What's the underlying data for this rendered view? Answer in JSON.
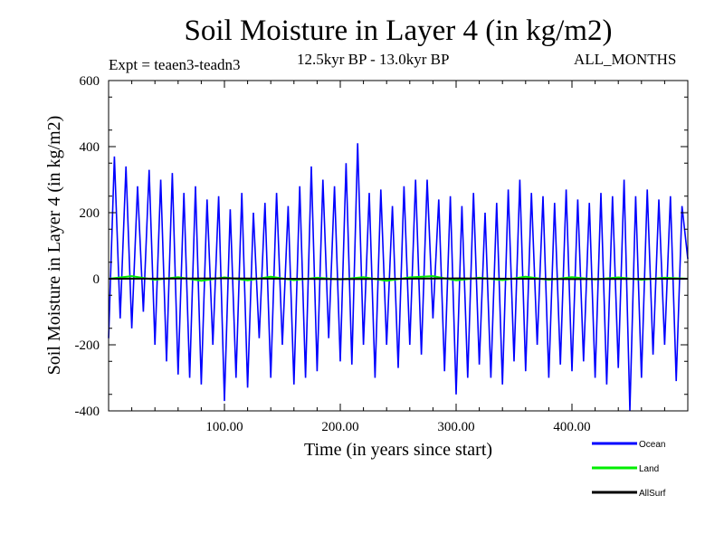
{
  "header": {
    "title": "Soil Moisture in Layer 4 (in kg/m2)",
    "expt": "Expt = teaen3-teadn3",
    "subtitle": "12.5kyr BP - 13.0kyr BP",
    "months": "ALL_MONTHS"
  },
  "chart_data": {
    "type": "line",
    "title": "Soil Moisture in Layer 4 (in kg/m2)",
    "xlabel": "Time (in years since start)",
    "ylabel": "Soil Moisture in Layer 4 (in kg/m2)",
    "xlim": [
      0,
      500
    ],
    "ylim": [
      -400,
      600
    ],
    "xticks": [
      100,
      200,
      300,
      400
    ],
    "xtick_labels": [
      "100.00",
      "200.00",
      "300.00",
      "400.00"
    ],
    "yticks": [
      -400,
      -200,
      0,
      200,
      400,
      600
    ],
    "ytick_labels": [
      "-400",
      "-200",
      "0",
      "200",
      "400",
      "600"
    ],
    "legend_position": "bottom-right, below plot",
    "series": [
      {
        "name": "Ocean",
        "color": "#0000ff",
        "x": [
          0,
          5,
          10,
          15,
          20,
          25,
          30,
          35,
          40,
          45,
          50,
          55,
          60,
          65,
          70,
          75,
          80,
          85,
          90,
          95,
          100,
          105,
          110,
          115,
          120,
          125,
          130,
          135,
          140,
          145,
          150,
          155,
          160,
          165,
          170,
          175,
          180,
          185,
          190,
          195,
          200,
          205,
          210,
          215,
          220,
          225,
          230,
          235,
          240,
          245,
          250,
          255,
          260,
          265,
          270,
          275,
          280,
          285,
          290,
          295,
          300,
          305,
          310,
          315,
          320,
          325,
          330,
          335,
          340,
          345,
          350,
          355,
          360,
          365,
          370,
          375,
          380,
          385,
          390,
          395,
          400,
          405,
          410,
          415,
          420,
          425,
          430,
          435,
          440,
          445,
          450,
          455,
          460,
          465,
          470,
          475,
          480,
          485,
          490,
          495,
          500
        ],
        "values": [
          -180,
          370,
          -120,
          340,
          -150,
          280,
          -100,
          330,
          -200,
          300,
          -250,
          320,
          -290,
          260,
          -300,
          280,
          -320,
          240,
          -200,
          250,
          -370,
          210,
          -300,
          260,
          -330,
          200,
          -180,
          230,
          -300,
          260,
          -200,
          220,
          -320,
          280,
          -300,
          340,
          -280,
          300,
          -180,
          280,
          -250,
          350,
          -260,
          410,
          -200,
          260,
          -300,
          270,
          -200,
          220,
          -270,
          280,
          -200,
          300,
          -230,
          300,
          -120,
          240,
          -280,
          250,
          -350,
          220,
          -300,
          260,
          -260,
          200,
          -300,
          230,
          -320,
          270,
          -250,
          300,
          -280,
          260,
          -200,
          250,
          -300,
          230,
          -260,
          270,
          -280,
          240,
          -250,
          230,
          -300,
          260,
          -320,
          250,
          -270,
          300,
          -400,
          250,
          -300,
          270,
          -230,
          240,
          -200,
          250,
          -310,
          220,
          60
        ],
        "approx": true
      },
      {
        "name": "Land",
        "color": "#00ee00",
        "x": [
          0,
          20,
          40,
          60,
          80,
          100,
          120,
          140,
          160,
          180,
          200,
          220,
          240,
          260,
          280,
          300,
          320,
          340,
          360,
          380,
          400,
          420,
          440,
          460,
          480,
          500
        ],
        "values": [
          0,
          8,
          -3,
          5,
          -6,
          4,
          -5,
          6,
          -4,
          3,
          -2,
          5,
          -6,
          4,
          8,
          -5,
          3,
          -4,
          6,
          -3,
          5,
          -2,
          4,
          -3,
          3,
          0
        ]
      },
      {
        "name": "AllSurf",
        "color": "#000000",
        "x": [
          0,
          100,
          200,
          300,
          400,
          500
        ],
        "values": [
          0,
          1,
          -1,
          1,
          -1,
          0
        ]
      }
    ]
  }
}
